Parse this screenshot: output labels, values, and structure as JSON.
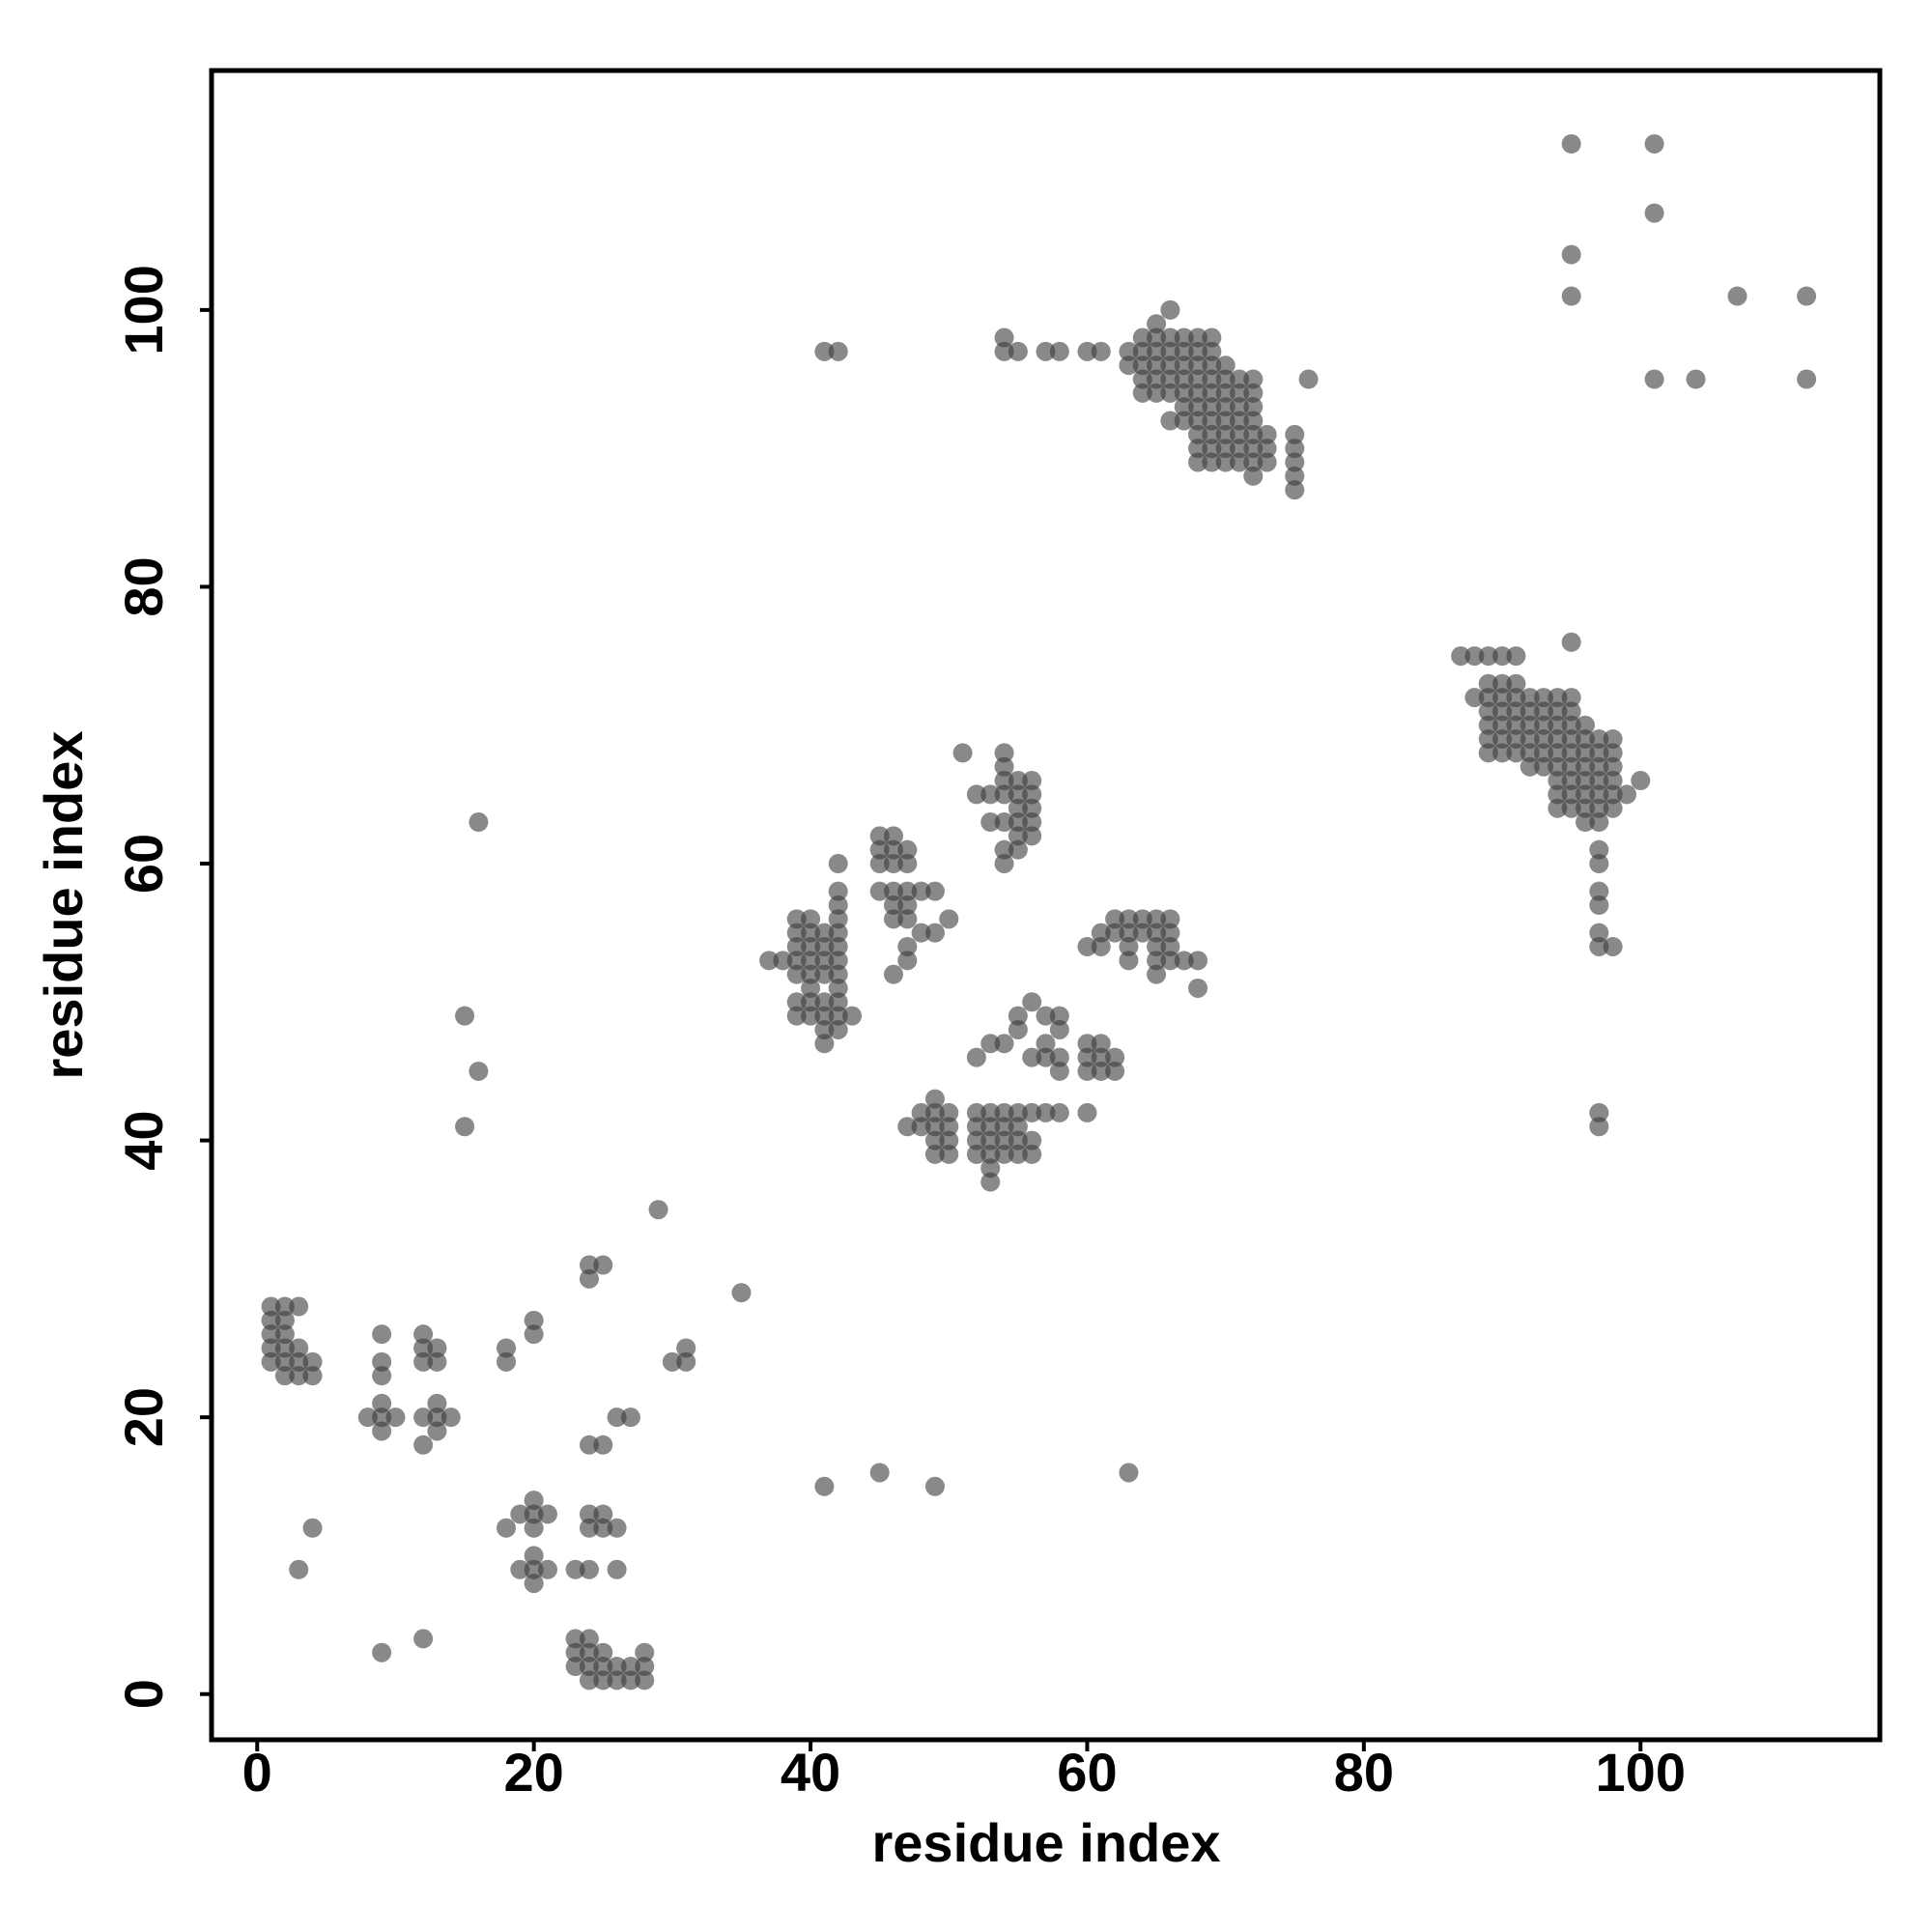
{
  "chart_data": {
    "type": "scatter",
    "x_label": "residue index",
    "y_label": "residue index",
    "xlim": [
      -3.3,
      117.3
    ],
    "ylim": [
      -3.3,
      117.3
    ],
    "xticks": [
      0,
      20,
      40,
      60,
      80,
      100
    ],
    "yticks": [
      0,
      20,
      40,
      60,
      80,
      100
    ],
    "grid": false,
    "color": "#3a3a3a",
    "x": [
      1,
      2,
      3,
      1,
      2,
      1,
      2,
      1,
      2,
      3,
      1,
      2,
      3,
      4,
      2,
      3,
      4,
      4,
      3,
      9,
      9,
      9,
      8,
      9,
      10,
      9,
      9,
      12,
      12,
      13,
      12,
      13,
      13,
      12,
      13,
      14,
      13,
      12,
      9,
      12,
      18,
      18,
      20,
      20,
      18,
      19,
      20,
      21,
      20,
      20,
      20,
      19,
      20,
      21,
      20,
      24,
      25,
      24,
      24,
      25,
      24,
      25,
      24,
      25,
      26,
      23,
      24,
      26,
      26,
      27,
      23,
      24,
      23,
      24,
      25,
      23,
      24,
      25,
      26,
      27,
      28,
      28,
      24,
      25,
      26,
      27,
      28,
      29,
      35,
      30,
      31,
      31,
      15,
      16,
      15,
      16,
      41,
      45,
      49,
      63,
      37,
      38,
      39,
      40,
      41,
      39,
      40,
      39,
      40,
      41,
      42,
      39,
      40,
      41,
      42,
      39,
      40,
      41,
      42,
      40,
      42,
      39,
      40,
      41,
      42,
      39,
      40,
      41,
      42,
      43,
      41,
      42,
      41,
      42,
      42,
      42,
      42,
      42,
      45,
      46,
      45,
      46,
      47,
      45,
      46,
      47,
      45,
      46,
      47,
      48,
      49,
      46,
      47,
      46,
      47,
      50,
      48,
      49,
      47,
      47,
      46,
      51,
      54,
      54,
      54,
      55,
      56,
      52,
      53,
      54,
      55,
      56,
      55,
      56,
      55,
      56,
      53,
      54,
      55,
      56,
      54,
      55,
      54,
      62,
      63,
      64,
      65,
      66,
      61,
      62,
      63,
      64,
      65,
      66,
      60,
      61,
      63,
      65,
      66,
      63,
      65,
      66,
      67,
      68,
      65,
      68,
      49,
      48,
      49,
      50,
      52,
      53,
      54,
      55,
      56,
      57,
      58,
      47,
      48,
      49,
      50,
      52,
      53,
      54,
      55,
      49,
      50,
      52,
      53,
      54,
      55,
      56,
      49,
      50,
      52,
      53,
      54,
      55,
      56,
      53,
      53,
      52,
      53,
      54,
      55,
      55,
      56,
      57,
      58,
      58,
      56,
      57,
      58,
      57,
      58,
      60,
      61,
      60,
      61,
      60,
      61,
      62,
      62,
      60,
      41,
      42,
      54,
      54,
      55,
      57,
      58,
      60,
      61,
      66,
      65,
      64,
      65,
      66,
      67,
      68,
      69,
      63,
      64,
      65,
      66,
      67,
      68,
      69,
      63,
      64,
      65,
      66,
      67,
      68,
      69,
      70,
      64,
      65,
      66,
      67,
      68,
      69,
      70,
      71,
      72,
      64,
      65,
      66,
      67,
      68,
      69,
      70,
      71,
      72,
      67,
      68,
      69,
      70,
      71,
      72,
      66,
      67,
      68,
      69,
      70,
      71,
      72,
      68,
      69,
      70,
      71,
      72,
      73,
      75,
      68,
      69,
      70,
      71,
      72,
      73,
      75,
      68,
      69,
      70,
      71,
      72,
      73,
      75,
      72,
      75,
      75,
      76,
      87,
      88,
      89,
      90,
      91,
      95,
      89,
      90,
      91,
      88,
      89,
      90,
      91,
      92,
      93,
      94,
      95,
      89,
      90,
      91,
      92,
      93,
      94,
      95,
      89,
      90,
      91,
      92,
      93,
      94,
      95,
      96,
      89,
      90,
      91,
      92,
      93,
      94,
      95,
      96,
      97,
      98,
      89,
      90,
      91,
      92,
      93,
      94,
      95,
      96,
      97,
      98,
      92,
      93,
      94,
      95,
      96,
      97,
      98,
      94,
      95,
      96,
      97,
      98,
      100,
      94,
      95,
      96,
      97,
      98,
      99,
      94,
      95,
      96,
      97,
      98,
      96,
      97,
      97,
      97,
      97,
      97,
      97,
      97,
      98,
      97,
      97,
      95,
      101,
      101,
      95,
      95,
      107,
      112,
      101,
      104,
      112
    ],
    "values": [
      28,
      28,
      28,
      27,
      27,
      26,
      26,
      25,
      25,
      25,
      24,
      24,
      24,
      24,
      23,
      23,
      23,
      12,
      9,
      26,
      24,
      23,
      20,
      20,
      20,
      21,
      19,
      26,
      25,
      25,
      24,
      24,
      21,
      20,
      20,
      20,
      19,
      18,
      3,
      4,
      25,
      24,
      27,
      26,
      12,
      13,
      13,
      13,
      14,
      12,
      10,
      9,
      9,
      9,
      8,
      31,
      31,
      30,
      18,
      18,
      13,
      13,
      12,
      12,
      12,
      9,
      9,
      9,
      20,
      20,
      4,
      4,
      3,
      3,
      3,
      2,
      2,
      2,
      2,
      2,
      2,
      3,
      1,
      1,
      1,
      1,
      1,
      35,
      29,
      24,
      24,
      25,
      49,
      45,
      41,
      63,
      15,
      16,
      15,
      16,
      53,
      53,
      56,
      56,
      55,
      55,
      55,
      54,
      54,
      54,
      54,
      53,
      53,
      53,
      53,
      52,
      52,
      52,
      52,
      51,
      51,
      50,
      50,
      50,
      50,
      49,
      49,
      49,
      49,
      49,
      48,
      48,
      47,
      55,
      56,
      57,
      58,
      60,
      62,
      62,
      61,
      61,
      61,
      60,
      60,
      60,
      58,
      58,
      58,
      58,
      58,
      57,
      57,
      56,
      56,
      56,
      55,
      55,
      54,
      53,
      52,
      68,
      68,
      67,
      66,
      66,
      66,
      65,
      65,
      65,
      65,
      65,
      64,
      64,
      63,
      63,
      63,
      63,
      62,
      62,
      61,
      61,
      60,
      56,
      56,
      56,
      56,
      56,
      55,
      55,
      55,
      55,
      55,
      55,
      54,
      54,
      54,
      54,
      54,
      53,
      53,
      53,
      53,
      53,
      52,
      51,
      43,
      42,
      42,
      42,
      42,
      42,
      42,
      42,
      42,
      42,
      42,
      41,
      41,
      41,
      41,
      41,
      41,
      41,
      41,
      40,
      40,
      40,
      40,
      40,
      40,
      40,
      39,
      39,
      39,
      39,
      39,
      39,
      39,
      38,
      37,
      46,
      47,
      47,
      48,
      49,
      50,
      49,
      49,
      48,
      46,
      46,
      46,
      47,
      45,
      47,
      47,
      46,
      46,
      45,
      45,
      45,
      46,
      42,
      97,
      97,
      98,
      97,
      97,
      97,
      97,
      97,
      97,
      100,
      99,
      98,
      98,
      98,
      98,
      98,
      98,
      97,
      97,
      97,
      97,
      97,
      97,
      97,
      96,
      96,
      96,
      96,
      96,
      96,
      96,
      96,
      95,
      95,
      95,
      95,
      95,
      95,
      95,
      95,
      95,
      94,
      94,
      94,
      94,
      94,
      94,
      94,
      94,
      94,
      93,
      93,
      93,
      93,
      93,
      93,
      92,
      92,
      92,
      92,
      92,
      92,
      92,
      91,
      91,
      91,
      91,
      91,
      91,
      91,
      90,
      90,
      90,
      90,
      90,
      90,
      90,
      89,
      89,
      89,
      89,
      89,
      89,
      89,
      88,
      88,
      87,
      95,
      75,
      75,
      75,
      75,
      75,
      76,
      73,
      73,
      73,
      72,
      72,
      72,
      72,
      72,
      72,
      72,
      72,
      71,
      71,
      71,
      71,
      71,
      71,
      71,
      70,
      70,
      70,
      70,
      70,
      70,
      70,
      70,
      69,
      69,
      69,
      69,
      69,
      69,
      69,
      69,
      69,
      69,
      68,
      68,
      68,
      68,
      68,
      68,
      68,
      68,
      68,
      68,
      67,
      67,
      67,
      67,
      67,
      67,
      67,
      66,
      66,
      66,
      66,
      66,
      66,
      65,
      65,
      65,
      65,
      65,
      65,
      64,
      64,
      64,
      64,
      64,
      63,
      63,
      61,
      60,
      58,
      57,
      55,
      54,
      54,
      42,
      41,
      112,
      112,
      107,
      104,
      101,
      101,
      101,
      95,
      95,
      95
    ]
  }
}
